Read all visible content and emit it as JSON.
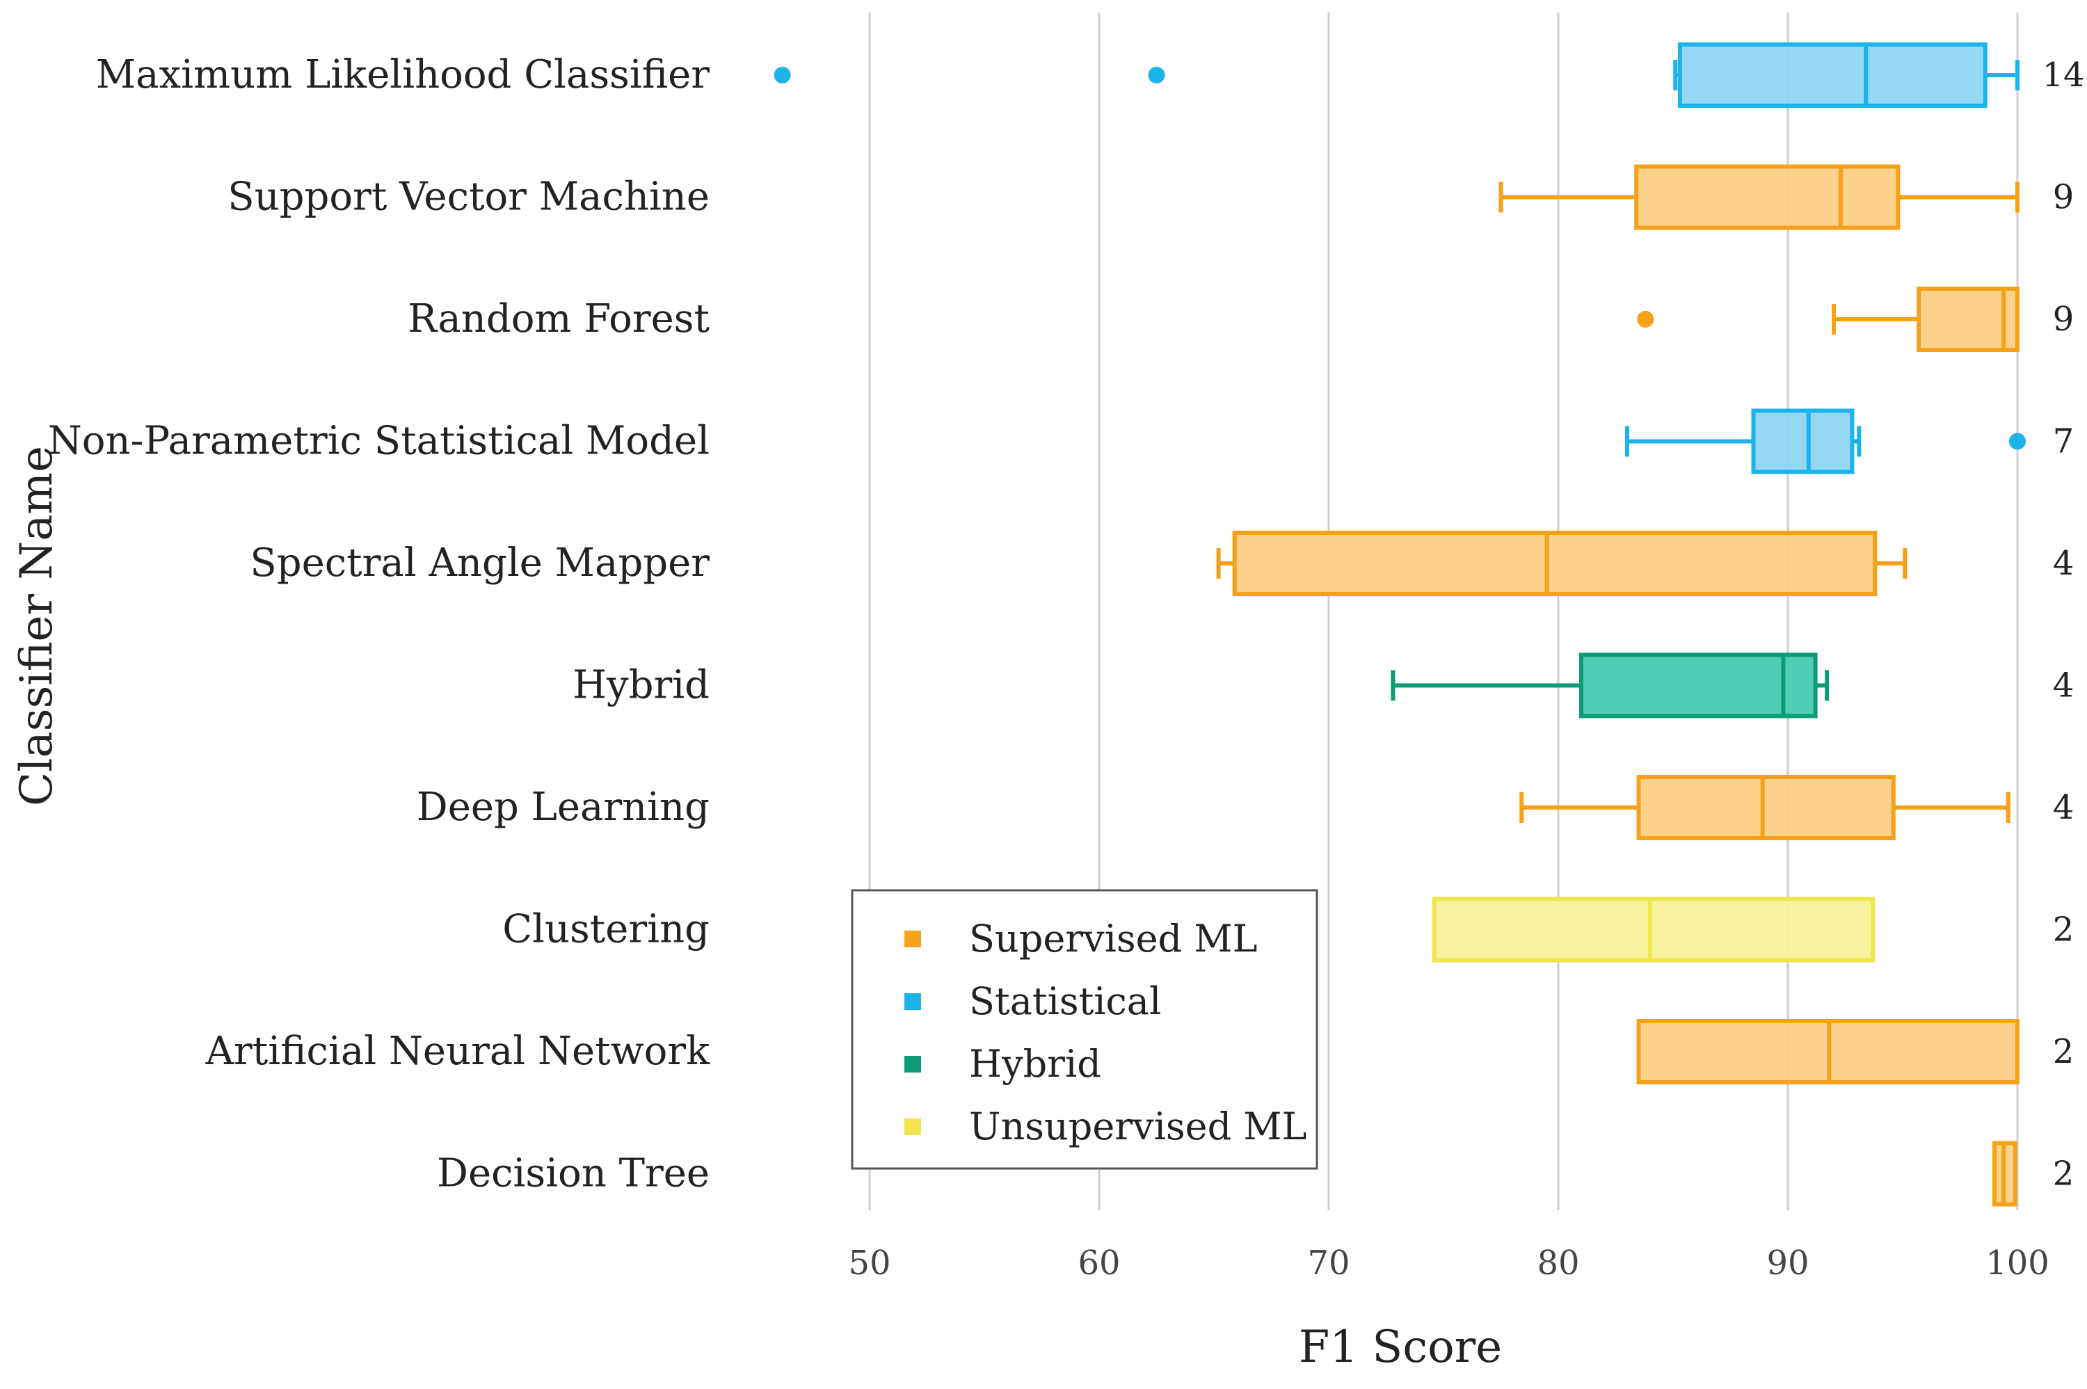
{
  "chart_data": {
    "type": "boxplot",
    "orientation": "horizontal",
    "xlabel": "F1 Score",
    "ylabel": "Classifier Name",
    "xlim": [
      45,
      101.5
    ],
    "xticks": [
      50,
      60,
      70,
      80,
      90,
      100
    ],
    "xtick_labels": [
      "50",
      "60",
      "70",
      "80",
      "90",
      "100"
    ],
    "grid": "vertical",
    "legend_position": "lower-left",
    "groups": [
      {
        "name": "Supervised ML",
        "color": "#F5A11A",
        "fill": "#FBCF85"
      },
      {
        "name": "Statistical",
        "color": "#1BB3EA",
        "fill": "#8FD6F3"
      },
      {
        "name": "Hybrid",
        "color": "#0C9B74",
        "fill": "#44CCB0"
      },
      {
        "name": "Unsupervised ML",
        "color": "#F2E54F",
        "fill": "#F8F199"
      }
    ],
    "classifiers": [
      {
        "name": "Maximum Likelihood Classifier",
        "group": "Statistical",
        "count": "14",
        "whisker_low": 85.1,
        "q1": 85.3,
        "median": 93.4,
        "q3": 98.6,
        "whisker_high": 100,
        "outliers": [
          46.2,
          62.5
        ]
      },
      {
        "name": "Support Vector Machine",
        "group": "Supervised ML",
        "count": "9",
        "whisker_low": 77.5,
        "q1": 83.4,
        "median": 92.3,
        "q3": 94.8,
        "whisker_high": 100,
        "outliers": []
      },
      {
        "name": "Random Forest",
        "group": "Supervised ML",
        "count": "9",
        "whisker_low": 92.0,
        "q1": 95.7,
        "median": 99.4,
        "q3": 100,
        "whisker_high": 100,
        "outliers": [
          83.8
        ]
      },
      {
        "name": "Non-Parametric Statistical Model",
        "group": "Statistical",
        "count": "7",
        "whisker_low": 83.0,
        "q1": 88.5,
        "median": 90.9,
        "q3": 92.8,
        "whisker_high": 93.1,
        "outliers": [
          100
        ]
      },
      {
        "name": "Spectral Angle Mapper",
        "group": "Supervised ML",
        "count": "4",
        "whisker_low": 65.2,
        "q1": 65.9,
        "median": 79.5,
        "q3": 93.8,
        "whisker_high": 95.1,
        "outliers": []
      },
      {
        "name": "Hybrid",
        "group": "Hybrid",
        "count": "4",
        "whisker_low": 72.8,
        "q1": 81.0,
        "median": 89.8,
        "q3": 91.2,
        "whisker_high": 91.7,
        "outliers": []
      },
      {
        "name": "Deep Learning",
        "group": "Supervised ML",
        "count": "4",
        "whisker_low": 78.4,
        "q1": 83.5,
        "median": 88.9,
        "q3": 94.6,
        "whisker_high": 99.6,
        "outliers": []
      },
      {
        "name": "Clustering",
        "group": "Unsupervised ML",
        "count": "2",
        "whisker_low": 74.6,
        "q1": 74.6,
        "median": 84.0,
        "q3": 93.7,
        "whisker_high": 93.7,
        "outliers": []
      },
      {
        "name": "Artificial Neural Network",
        "group": "Supervised ML",
        "count": "2",
        "whisker_low": 83.5,
        "q1": 83.5,
        "median": 91.8,
        "q3": 100,
        "whisker_high": 100,
        "outliers": []
      },
      {
        "name": "Decision Tree",
        "group": "Supervised ML",
        "count": "2",
        "whisker_low": 99.0,
        "q1": 99.0,
        "median": 99.4,
        "q3": 99.9,
        "whisker_high": 99.9,
        "outliers": []
      }
    ]
  }
}
